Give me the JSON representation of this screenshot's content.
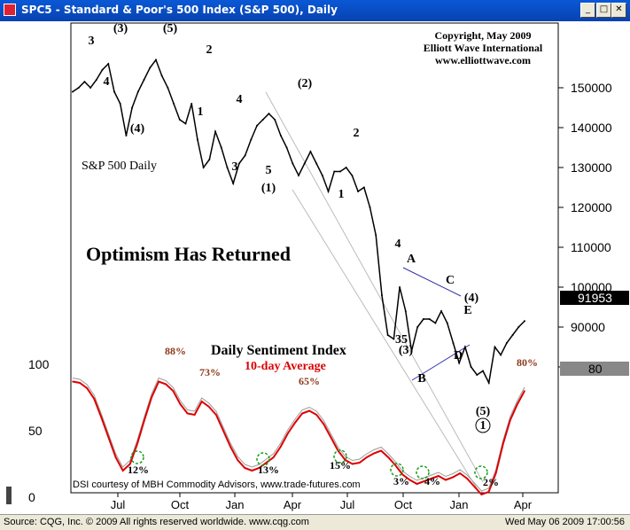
{
  "window": {
    "title": "SPC5 - Standard & Poor's 500 Index (S&P 500), Daily",
    "min_icon": "minimize-icon",
    "max_icon": "maximize-icon",
    "close_icon": "close-icon",
    "min_glyph": "_",
    "max_glyph": "□",
    "close_glyph": "✕"
  },
  "status": {
    "source": "Source: CQG, Inc. © 2009 All rights reserved worldwide.  www.cqg.com",
    "datetime": "Wed May 06 2009  17:00:56"
  },
  "chart_data": [
    {
      "type": "line",
      "title": "Optimism Has Returned",
      "subtitle": "S&P 500 Daily",
      "copyright": [
        "Copyright, May 2009",
        "Elliott Wave International",
        "www.elliottwave.com"
      ],
      "x_tick_labels": [
        "Jul",
        "Oct",
        "Jan",
        "Apr",
        "Jul",
        "Oct",
        "Jan",
        "Apr"
      ],
      "y_tick_labels": [
        "150000",
        "140000",
        "130000",
        "120000",
        "110000",
        "100000",
        "90000",
        "80000"
      ],
      "ylim": [
        75000,
        160000
      ],
      "last_value_label": "91953",
      "series": [
        {
          "values": [
            149000,
            150000,
            151500,
            150000,
            152000,
            154500,
            156000,
            149000,
            146000,
            138000,
            145000,
            149000,
            152000,
            155000,
            157000,
            153000,
            150000,
            146000,
            142000,
            141000,
            146000,
            137000,
            130000,
            132000,
            139000,
            135000,
            130000,
            126000,
            131000,
            133000,
            137000,
            140500,
            142000,
            143500,
            142000,
            138000,
            135000,
            131000,
            128000,
            131000,
            134000,
            131000,
            128000,
            124000,
            129000,
            129000,
            130000,
            128000,
            124000,
            125000,
            120000,
            113000,
            98000,
            88000,
            87000,
            100000,
            94000,
            84000,
            90000,
            92000,
            92000,
            91000,
            94000,
            91000,
            86000,
            81000,
            85000,
            80000,
            78000,
            79000,
            76000,
            85000,
            83000,
            86000,
            88000,
            90000,
            91500
          ]
        }
      ],
      "wave_labels": [
        "3",
        "(3)",
        "4",
        "(4)",
        "(5)",
        "2",
        "1",
        "4",
        "3",
        "5",
        "(1)",
        "(2)",
        "2",
        "1",
        "4",
        "35",
        "(3)",
        "A",
        "B",
        "C",
        "(4)",
        "E",
        "D",
        "(5)",
        "1"
      ],
      "wave_label_circled": [
        "1"
      ]
    },
    {
      "type": "line",
      "title": "Daily Sentiment Index",
      "subtitle": "10-day Average",
      "y_tick_labels": [
        "100",
        "50",
        "0"
      ],
      "ylim": [
        0,
        100
      ],
      "last_value_label": "80",
      "series": [
        {
          "name": "10-day Average",
          "color": "#dd0000",
          "values": [
            87,
            86,
            82,
            74,
            60,
            45,
            30,
            20,
            25,
            40,
            58,
            75,
            87,
            85,
            80,
            70,
            63,
            62,
            72,
            68,
            62,
            50,
            38,
            28,
            22,
            20,
            22,
            26,
            30,
            38,
            48,
            56,
            63,
            65,
            62,
            55,
            45,
            35,
            28,
            25,
            26,
            30,
            33,
            35,
            30,
            24,
            17,
            13,
            10,
            12,
            14,
            16,
            13,
            15,
            18,
            14,
            8,
            2,
            4,
            18,
            40,
            58,
            70,
            80
          ]
        }
      ],
      "annotations": [
        "88%",
        "73%",
        "65%",
        "80%",
        "12%",
        "13%",
        "15%",
        "3%",
        "4%",
        "2%"
      ],
      "credit": "DSI courtesy of MBH Commodity Advisors, www.trade-futures.com"
    }
  ]
}
